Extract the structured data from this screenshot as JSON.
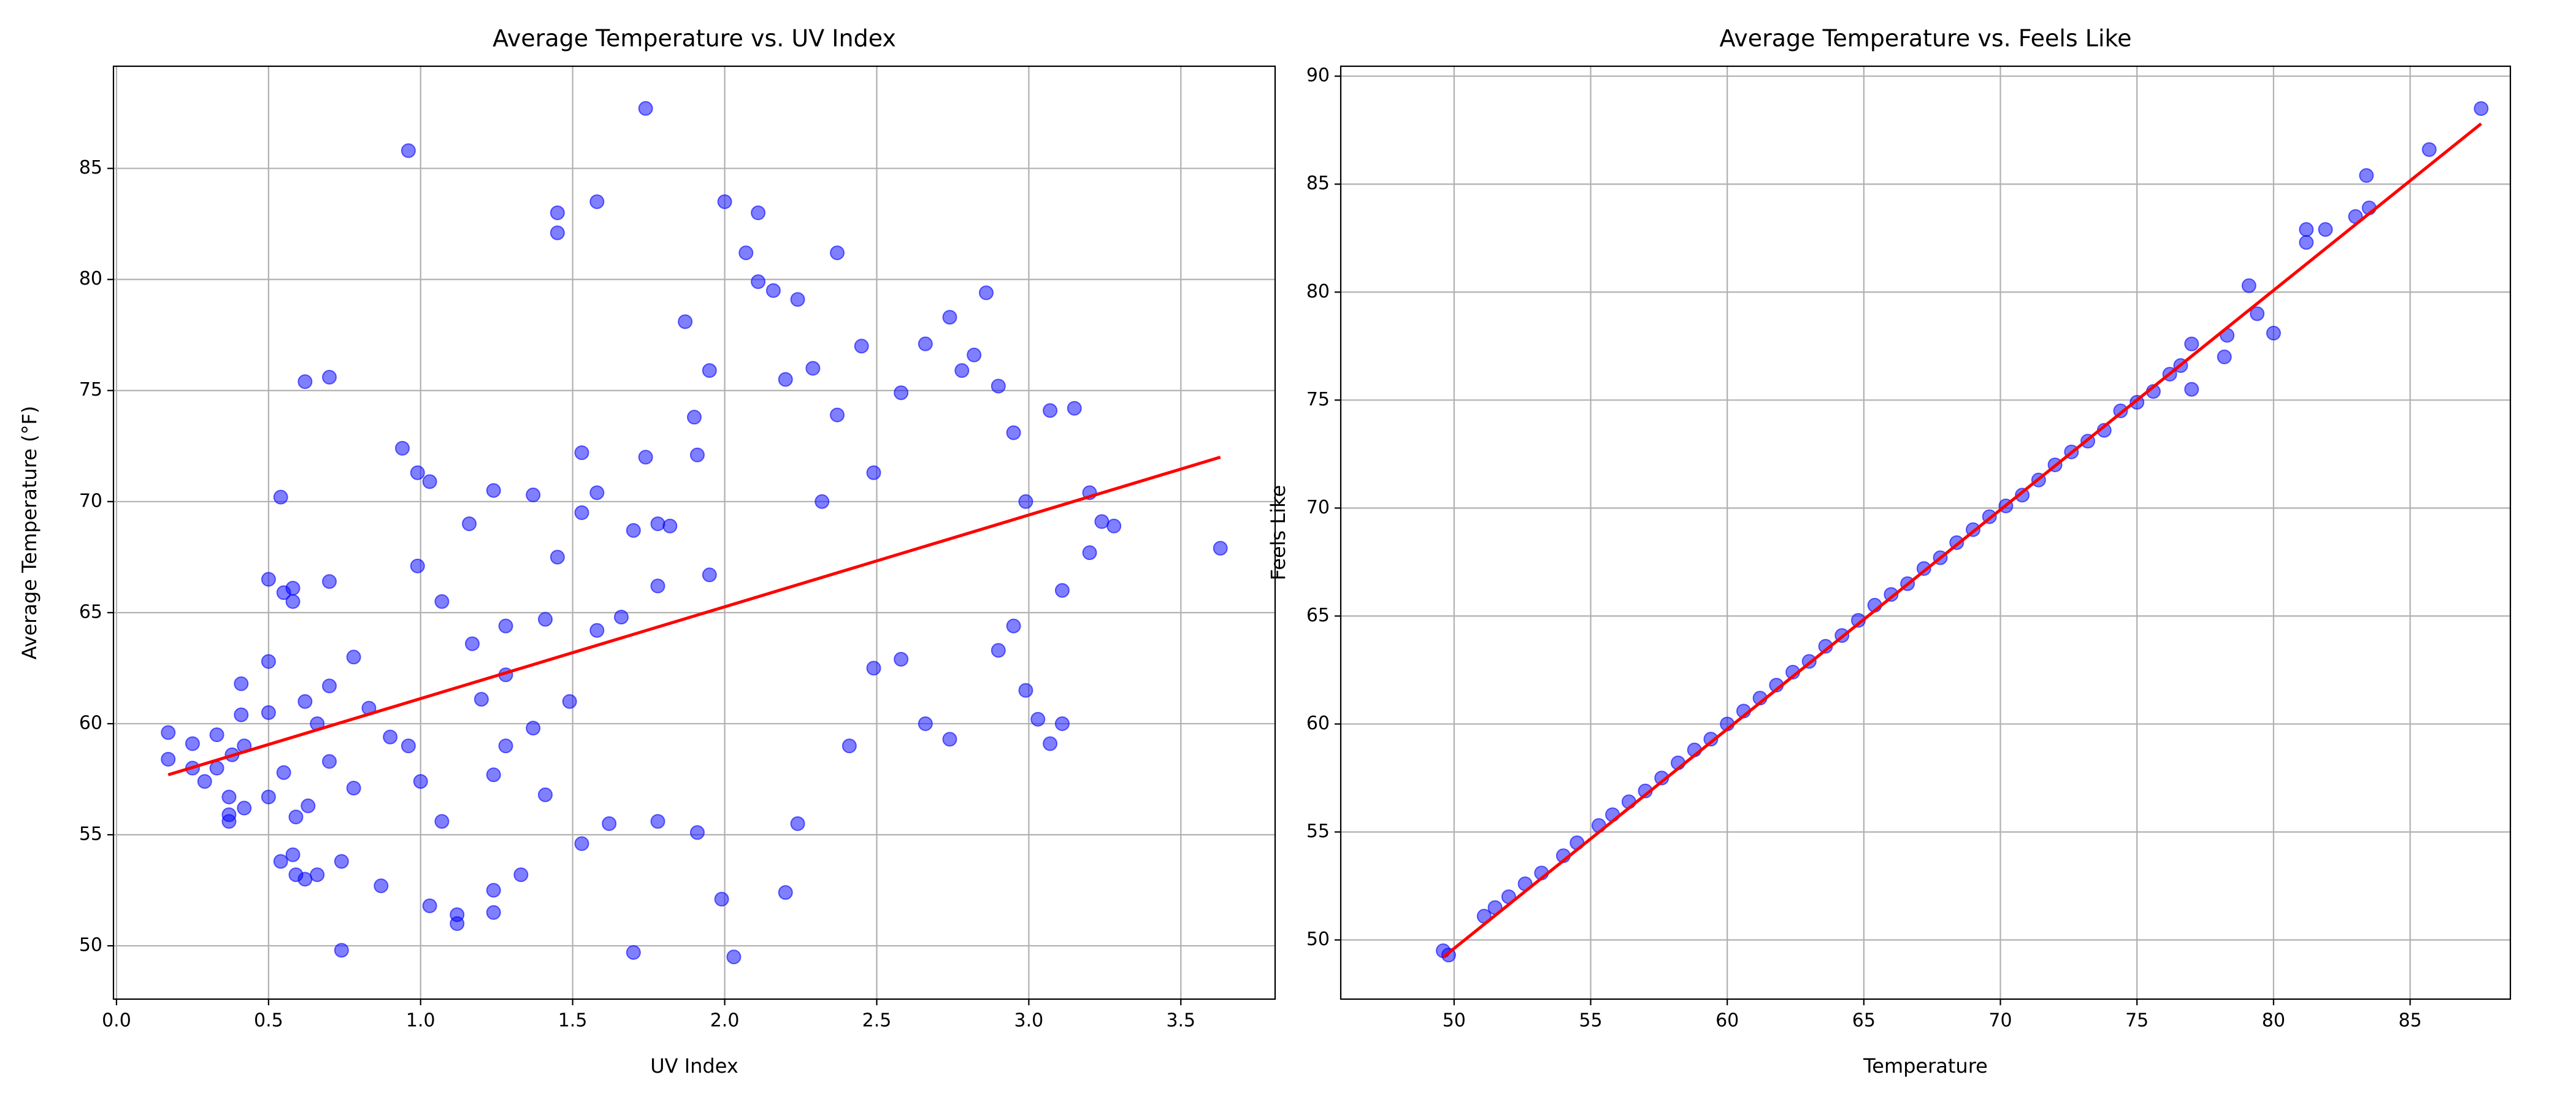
{
  "chart_data": [
    {
      "type": "scatter",
      "title": "Average Temperature vs. UV Index",
      "xlabel": "UV Index",
      "ylabel": "Average Temperature (°F)",
      "xlim": [
        -0.01,
        3.81
      ],
      "ylim": [
        47.6,
        89.6
      ],
      "xticks": [
        {
          "value": 0,
          "label": "0.0"
        },
        0.5,
        {
          "value": 1,
          "label": "1.0"
        },
        1.5,
        {
          "value": 2,
          "label": "2.0"
        },
        2.5,
        {
          "value": 3,
          "label": "3.0"
        },
        3.5
      ],
      "yticks": [
        50,
        55,
        60,
        65,
        70,
        75,
        80,
        85
      ],
      "grid": true,
      "series": [
        {
          "color": "blue",
          "x": [
            0.17,
            0.17,
            0.25,
            0.25,
            0.29,
            0.33,
            0.33,
            0.37,
            0.37,
            0.37,
            0.38,
            0.41,
            0.41,
            0.42,
            0.42,
            0.5,
            0.5,
            0.5,
            0.5,
            0.54,
            0.54,
            0.55,
            0.55,
            0.58,
            0.58,
            0.58,
            0.59,
            0.59,
            0.62,
            0.62,
            0.62,
            0.63,
            0.66,
            0.66,
            0.7,
            0.7,
            0.7,
            0.7,
            0.74,
            0.74,
            0.78,
            0.78,
            0.83,
            0.87,
            0.9,
            0.94,
            0.96,
            0.96,
            0.99,
            0.99,
            1.0,
            1.03,
            1.03,
            1.07,
            1.07,
            1.12,
            1.12,
            1.16,
            1.17,
            1.2,
            1.24,
            1.24,
            1.24,
            1.24,
            1.28,
            1.28,
            1.28,
            1.33,
            1.37,
            1.37,
            1.41,
            1.41,
            1.45,
            1.45,
            1.45,
            1.49,
            1.53,
            1.53,
            1.53,
            1.58,
            1.58,
            1.58,
            1.62,
            1.66,
            1.7,
            1.7,
            1.74,
            1.74,
            1.78,
            1.78,
            1.78,
            1.82,
            1.87,
            1.9,
            1.91,
            1.91,
            1.95,
            1.95,
            1.99,
            2.0,
            2.03,
            2.07,
            2.11,
            2.11,
            2.16,
            2.2,
            2.2,
            2.24,
            2.24,
            2.29,
            2.32,
            2.37,
            2.37,
            2.41,
            2.45,
            2.49,
            2.49,
            2.58,
            2.58,
            2.66,
            2.66,
            2.74,
            2.74,
            2.78,
            2.82,
            2.86,
            2.9,
            2.9,
            2.95,
            2.95,
            2.99,
            2.99,
            3.03,
            3.07,
            3.07,
            3.11,
            3.11,
            3.15,
            3.2,
            3.2,
            3.24,
            3.28,
            3.63
          ],
          "values": [
            59.6,
            58.4,
            59.1,
            58.0,
            57.4,
            59.5,
            58.0,
            55.6,
            55.9,
            56.7,
            58.6,
            61.8,
            60.4,
            56.2,
            59.0,
            66.5,
            62.8,
            60.5,
            56.7,
            70.2,
            53.8,
            57.8,
            65.9,
            66.1,
            65.5,
            54.1,
            53.2,
            55.8,
            75.4,
            61.0,
            53.0,
            56.3,
            60.0,
            53.2,
            75.6,
            66.4,
            61.7,
            58.3,
            49.8,
            53.8,
            63.0,
            57.1,
            60.7,
            52.7,
            59.4,
            72.4,
            85.8,
            59.0,
            71.3,
            67.1,
            57.4,
            51.8,
            70.9,
            65.5,
            55.6,
            51.4,
            51.0,
            69.0,
            63.6,
            61.1,
            70.5,
            57.7,
            52.5,
            51.5,
            64.4,
            62.2,
            59.0,
            53.2,
            70.3,
            59.8,
            64.7,
            56.8,
            83.0,
            82.1,
            67.5,
            61.0,
            72.2,
            69.5,
            54.6,
            83.5,
            70.4,
            64.2,
            55.5,
            64.8,
            68.7,
            49.7,
            87.7,
            72.0,
            69.0,
            66.2,
            55.6,
            68.9,
            78.1,
            73.8,
            72.1,
            55.1,
            75.9,
            66.7,
            52.1,
            83.5,
            49.5,
            81.2,
            83.0,
            79.9,
            79.5,
            75.5,
            52.4,
            79.1,
            55.5,
            76.0,
            70.0,
            81.2,
            73.9,
            59.0,
            77.0,
            71.3,
            62.5,
            74.9,
            62.9,
            77.1,
            60.0,
            78.3,
            59.3,
            75.9,
            76.6,
            79.4,
            75.2,
            63.3,
            73.1,
            64.4,
            70.0,
            61.5,
            60.2,
            74.1,
            59.1,
            66.0,
            60.0,
            74.2,
            70.4,
            67.7,
            69.1,
            68.9,
            67.9
          ]
        }
      ],
      "trend": {
        "color": "red",
        "x": [
          0.17,
          3.63
        ],
        "values": [
          57.7,
          72.0
        ]
      }
    },
    {
      "type": "scatter",
      "title": "Average Temperature vs. Feels Like",
      "xlabel": "Temperature",
      "ylabel": "Feels Like",
      "xlim": [
        45.85,
        88.67
      ],
      "ylim": [
        47.26,
        90.46
      ],
      "xticks": [
        50,
        55,
        60,
        65,
        70,
        75,
        80,
        85
      ],
      "yticks": [
        50,
        55,
        60,
        65,
        70,
        75,
        80,
        85,
        90
      ],
      "grid": true,
      "series": [
        {
          "color": "blue",
          "x": [
            49.6,
            49.8,
            51.1,
            51.5,
            52.0,
            52.6,
            53.2,
            54.0,
            54.5,
            55.3,
            55.8,
            56.4,
            57.0,
            57.6,
            58.2,
            58.8,
            59.4,
            60.0,
            60.6,
            61.2,
            61.8,
            62.4,
            63.0,
            63.6,
            64.2,
            64.8,
            65.4,
            66.0,
            66.6,
            67.2,
            67.8,
            68.4,
            69.0,
            69.6,
            70.2,
            70.8,
            71.4,
            72.0,
            72.6,
            73.2,
            73.8,
            74.4,
            75.0,
            75.6,
            76.2,
            76.6,
            77.0,
            77.0,
            78.2,
            78.3,
            79.1,
            79.4,
            80.0,
            81.2,
            81.2,
            81.9,
            83.0,
            83.4,
            83.5,
            85.7,
            87.6
          ],
          "values": [
            49.5,
            49.3,
            51.1,
            51.5,
            52.0,
            52.6,
            53.1,
            53.9,
            54.5,
            55.3,
            55.8,
            56.4,
            56.9,
            57.5,
            58.2,
            58.8,
            59.3,
            60.0,
            60.6,
            61.2,
            61.8,
            62.4,
            62.9,
            63.6,
            64.1,
            64.8,
            65.5,
            66.0,
            66.5,
            67.2,
            67.7,
            68.4,
            69.0,
            69.6,
            70.1,
            70.6,
            71.3,
            72.0,
            72.6,
            73.1,
            73.6,
            74.5,
            74.9,
            75.4,
            76.2,
            76.6,
            77.6,
            75.5,
            77.0,
            78.0,
            80.3,
            79.0,
            78.1,
            82.9,
            82.3,
            82.9,
            83.5,
            85.4,
            83.9,
            86.6,
            88.5
          ]
        }
      ],
      "trend": {
        "color": "red",
        "x": [
          49.6,
          87.6
        ],
        "values": [
          49.2,
          87.8
        ]
      }
    }
  ]
}
